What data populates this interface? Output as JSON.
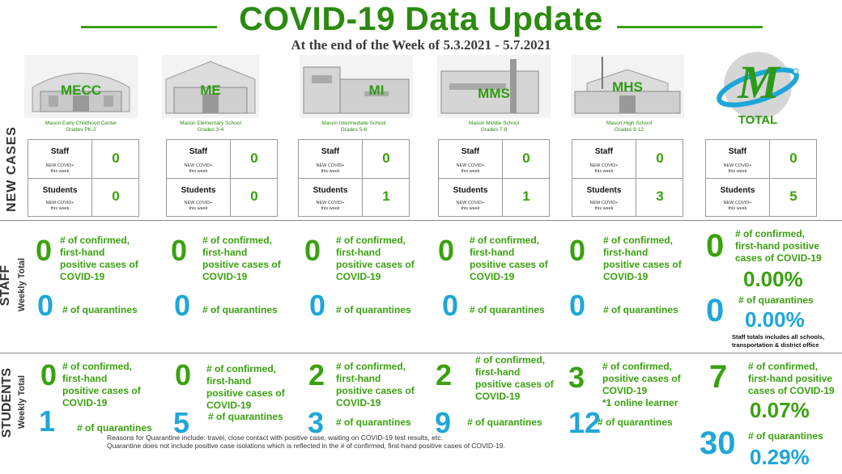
{
  "header": {
    "title": "COVID-19 Data Update",
    "subtitle": "At the end of the Week of 5.3.2021 - 5.7.2021"
  },
  "side_labels": {
    "new_cases": "NEW CASES",
    "staff": "STAFF",
    "students": "STUDENTS",
    "weekly_total": "Weekly Total"
  },
  "total_logo": {
    "letter": "M",
    "label": "TOTAL"
  },
  "new_cases_labels": {
    "staff": "Staff",
    "students": "Students",
    "sub_line1": "NEW COVID+",
    "sub_line2": "this week"
  },
  "schools": [
    {
      "abbr": "MECC",
      "full_name": "Mason Early Childhood Center",
      "grades": "Grades PK-2",
      "new_staff": "0",
      "new_students": "0",
      "staff_confirmed": "0",
      "staff_quarantines": "0",
      "student_confirmed": "0",
      "student_quarantines": "1"
    },
    {
      "abbr": "ME",
      "full_name": "Mason Elementary School",
      "grades": "Grades 3-4",
      "new_staff": "0",
      "new_students": "0",
      "staff_confirmed": "0",
      "staff_quarantines": "0",
      "student_confirmed": "0",
      "student_quarantines": "5"
    },
    {
      "abbr": "MI",
      "full_name": "Mason Intermediate  School",
      "grades": "Grades 5-6",
      "new_staff": "0",
      "new_students": "1",
      "staff_confirmed": "0",
      "staff_quarantines": "0",
      "student_confirmed": "2",
      "student_quarantines": "3"
    },
    {
      "abbr": "MMS",
      "full_name": "Mason Middle School",
      "grades": "Grades 7-8",
      "new_staff": "0",
      "new_students": "1",
      "staff_confirmed": "0",
      "staff_quarantines": "0",
      "student_confirmed": "2",
      "student_quarantines": "9"
    },
    {
      "abbr": "MHS",
      "full_name": "Mason High School",
      "grades": "Grades 9-12",
      "new_staff": "0",
      "new_students": "3",
      "staff_confirmed": "0",
      "staff_quarantines": "0",
      "student_confirmed": "3",
      "student_quarantines": "12"
    }
  ],
  "total": {
    "new_staff": "0",
    "new_students": "5",
    "staff_confirmed": "0",
    "staff_confirmed_pct": "0.00%",
    "staff_quarantines": "0",
    "staff_quarantines_pct": "0.00%",
    "staff_note": "Staff totals includes all schools, transportation & district office",
    "student_confirmed": "7",
    "student_confirmed_pct": "0.07%",
    "student_quarantines": "30",
    "student_quarantines_pct": "0.29%"
  },
  "desc": {
    "confirmed_l1": "# of confirmed,",
    "confirmed_l2": "first-hand",
    "confirmed_l3": "positive cases of",
    "confirmed_l4": "COVID-19",
    "quarantines": "# of quarantines",
    "total_confirmed_l1": "# of confirmed,",
    "total_confirmed_l2": "first-hand positive",
    "total_confirmed_l3": "cases of COVID-19",
    "mhs_student_l1": "# of confirmed,",
    "mhs_student_l2": "positive cases of",
    "mhs_student_l3": "COVID-19",
    "mhs_student_l4": "*1 online learner"
  },
  "notes": {
    "line1": "Reasons for Quarantine include: travel, close contact with positive case, waiting on COVID-19 test results, etc.",
    "line2": "Quarantine does not include positive case isolations which is reflected in the # of confirmed, first-hand positive cases of COVID-19."
  },
  "colors": {
    "green": "#3aa10f",
    "title_green": "#2b8a0f",
    "blue": "#1fa6d9"
  }
}
